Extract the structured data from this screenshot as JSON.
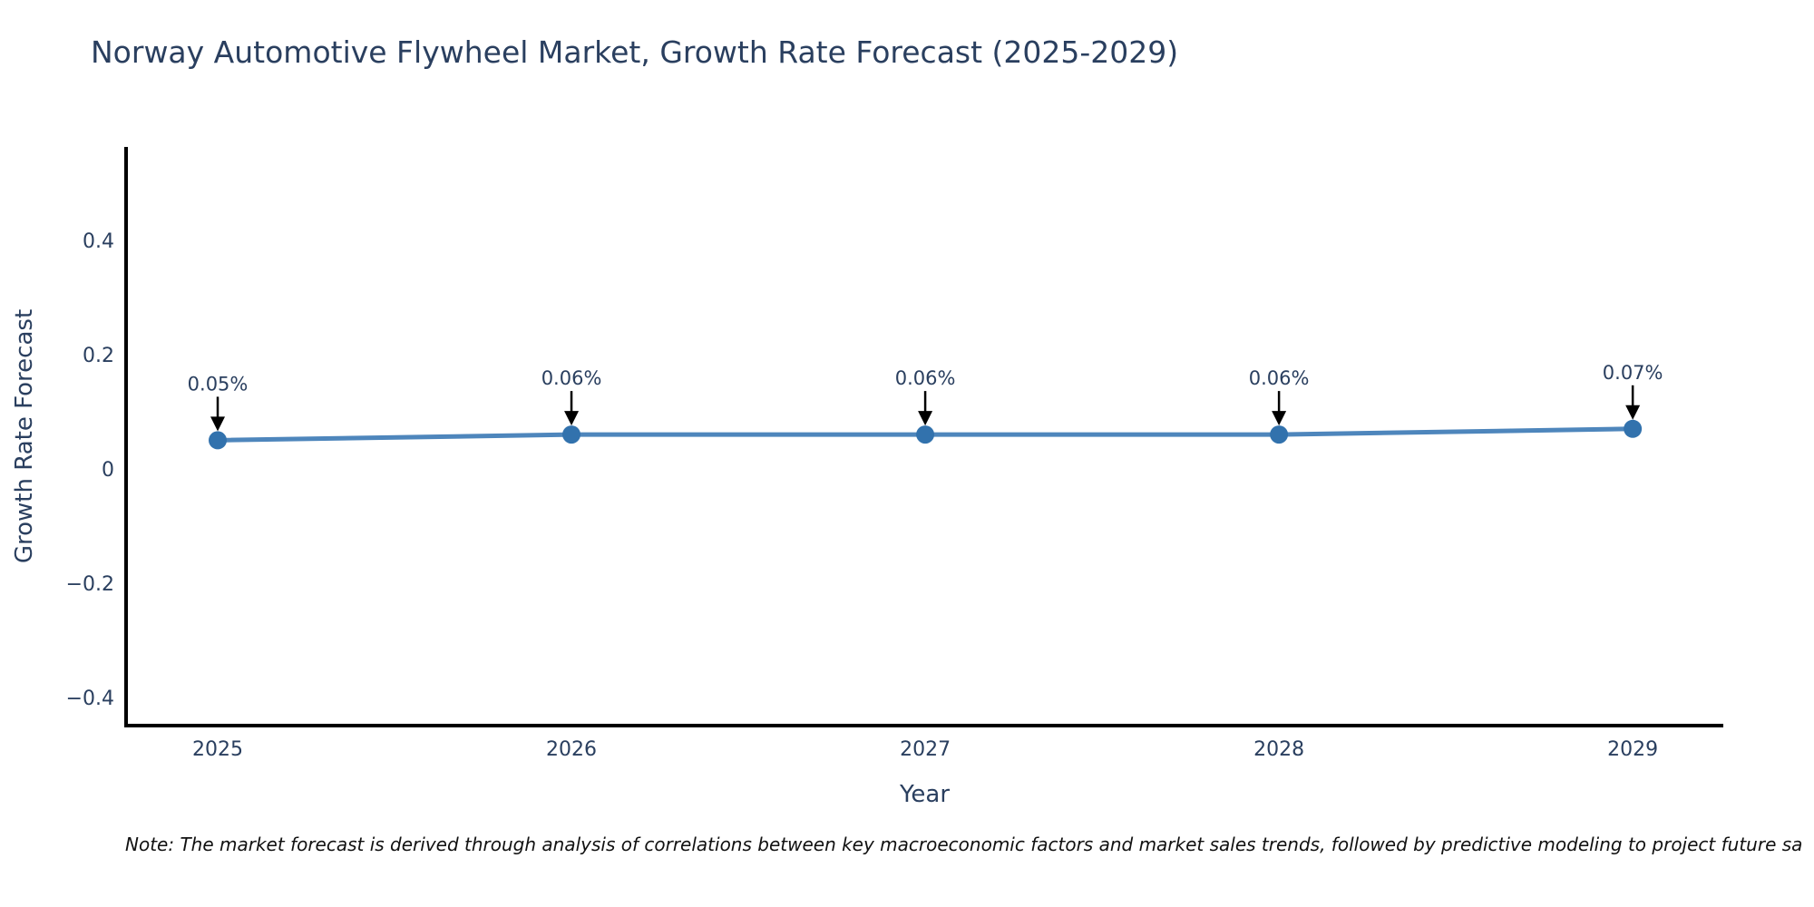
{
  "title": "Norway Automotive Flywheel Market, Growth Rate Forecast (2025-2029)",
  "note": "Note: The market forecast is derived through analysis of correlations between key macroeconomic factors and market sales trends, followed by predictive modeling to project future sa",
  "chart_data": {
    "type": "line",
    "title": "Norway Automotive Flywheel Market, Growth Rate Forecast (2025-2029)",
    "xlabel": "Year",
    "ylabel": "Growth Rate Forecast",
    "x": [
      2025,
      2026,
      2027,
      2028,
      2029
    ],
    "values": [
      0.05,
      0.06,
      0.06,
      0.06,
      0.07
    ],
    "point_labels": [
      "0.05%",
      "0.06%",
      "0.06%",
      "0.06%",
      "0.07%"
    ],
    "x_tick_labels": [
      "2025",
      "2026",
      "2027",
      "2028",
      "2029"
    ],
    "y_ticks": [
      0.4,
      0.2,
      0,
      -0.2,
      -0.4
    ],
    "y_tick_labels": [
      "0.4",
      "0.2",
      "0",
      "−0.2",
      "−0.4"
    ],
    "xlim": [
      2024.741,
      2029.256
    ],
    "ylim": [
      -0.449,
      0.563
    ],
    "grid": false,
    "legend": false,
    "annotation_arrows": true,
    "colors": {
      "line": "#4e86bc",
      "marker": "#3272ad",
      "axis": "#000000",
      "text": "#2a3f5f",
      "arrow": "#000000",
      "background": "#ffffff"
    }
  }
}
